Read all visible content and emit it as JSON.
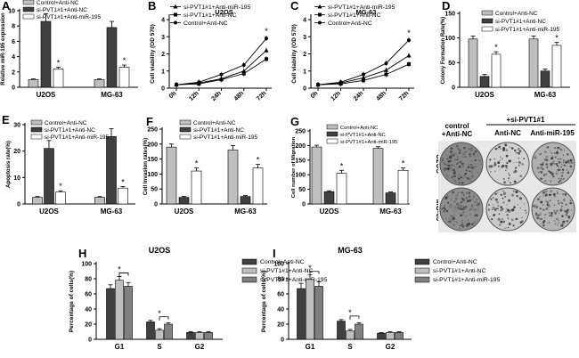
{
  "legend_colors": {
    "control": "#bfbfbf",
    "si": "#404040",
    "si_anti": "#ffffff",
    "mid": "#808080"
  },
  "chart_data": [
    {
      "id": "A",
      "type": "bar",
      "panel_label": "A",
      "ylabel": "Relative miR-195 expression",
      "categories": [
        "U2OS",
        "MG-63"
      ],
      "yticks": [
        0,
        2,
        4,
        6,
        8,
        10
      ],
      "ylim": [
        0,
        10
      ],
      "series": [
        {
          "name": "Control+Anti-NC",
          "values": [
            1.0,
            1.0
          ],
          "errors": [
            0.1,
            0.1
          ]
        },
        {
          "name": "si-PVT1#1+Anti-NC",
          "values": [
            8.6,
            7.8
          ],
          "errors": [
            1.0,
            0.8
          ]
        },
        {
          "name": "si-PVT1#1+Anti-miR-195",
          "values": [
            2.4,
            2.6
          ],
          "errors": [
            0.2,
            0.3
          ]
        }
      ],
      "annotations": [
        "*",
        "*"
      ]
    },
    {
      "id": "B",
      "type": "line",
      "panel_label": "B",
      "title": "U2OS",
      "ylabel": "Cell viability (OD 570)",
      "categories": [
        "0h",
        "12h",
        "24h",
        "48h",
        "72h"
      ],
      "yticks": [
        0,
        1,
        2,
        3,
        4
      ],
      "ylim": [
        0,
        4
      ],
      "series": [
        {
          "name": "si-PVT1#1+Anti-miR-195",
          "values": [
            0.2,
            0.3,
            0.55,
            1.0,
            2.2
          ]
        },
        {
          "name": "si-PVT1#1+Anti-NC",
          "values": [
            0.2,
            0.25,
            0.5,
            0.85,
            1.7
          ]
        },
        {
          "name": "Control+Anti-NC",
          "values": [
            0.2,
            0.35,
            0.8,
            1.35,
            2.9
          ]
        }
      ],
      "annotations": [
        "*"
      ]
    },
    {
      "id": "C",
      "type": "line",
      "panel_label": "C",
      "title": "MG-63",
      "ylabel": "Cell viability (OD 570)",
      "categories": [
        "0h",
        "12h",
        "24h",
        "48h",
        "72h"
      ],
      "yticks": [
        0,
        1,
        2,
        3,
        4
      ],
      "ylim": [
        0,
        4
      ],
      "series": [
        {
          "name": "si-PVT1#1+Anti-miR-195",
          "values": [
            0.2,
            0.3,
            0.6,
            1.05,
            1.9
          ]
        },
        {
          "name": "si-PVT1#1+Anti-NC",
          "values": [
            0.2,
            0.25,
            0.45,
            0.8,
            1.4
          ]
        },
        {
          "name": "Control+Anti-NC",
          "values": [
            0.2,
            0.35,
            0.8,
            1.45,
            2.8
          ]
        }
      ],
      "annotations": [
        "*"
      ]
    },
    {
      "id": "D",
      "type": "bar",
      "panel_label": "D",
      "ylabel": "Colony Formation Rate(%)",
      "categories": [
        "U2OS",
        "MG-63"
      ],
      "yticks": [
        0,
        50,
        100,
        150
      ],
      "ylim": [
        0,
        150
      ],
      "series": [
        {
          "name": "Control+Anti-NC",
          "values": [
            98,
            98
          ],
          "errors": [
            6,
            6
          ]
        },
        {
          "name": "si-PVT1#1+Anti-NC",
          "values": [
            22,
            33
          ],
          "errors": [
            4,
            4
          ]
        },
        {
          "name": "si-PVT1#1+Anti-miR-195",
          "values": [
            67,
            85
          ],
          "errors": [
            5,
            6
          ]
        }
      ],
      "annotations": [
        "*",
        "*"
      ]
    },
    {
      "id": "E",
      "type": "bar",
      "panel_label": "E",
      "ylabel": "Apoptosis rate(%)",
      "categories": [
        "U2OS",
        "MG-63"
      ],
      "yticks": [
        0,
        10,
        20,
        30
      ],
      "ylim": [
        0,
        30
      ],
      "series": [
        {
          "name": "Control+Anti-NC",
          "values": [
            2.5,
            2.5
          ],
          "errors": [
            0.3,
            0.3
          ]
        },
        {
          "name": "si-PVT1#1+Anti-NC",
          "values": [
            21,
            25.5
          ],
          "errors": [
            3,
            3
          ]
        },
        {
          "name": "si-PVT1#1+Anti-miR-195",
          "values": [
            4.5,
            6
          ],
          "errors": [
            0.5,
            0.6
          ]
        }
      ],
      "annotations": [
        "*",
        "*"
      ]
    },
    {
      "id": "F",
      "type": "bar",
      "panel_label": "F",
      "ylabel": "Cell Invasion rates(%)",
      "categories": [
        "U2OS",
        "MG-63"
      ],
      "yticks": [
        0,
        50,
        100,
        150,
        200,
        250
      ],
      "ylim": [
        0,
        250
      ],
      "series": [
        {
          "name": "Control+Anti-NC",
          "values": [
            190,
            180
          ],
          "errors": [
            10,
            15
          ]
        },
        {
          "name": "si-PVT1#1+Anti-NC",
          "values": [
            22,
            25
          ],
          "errors": [
            3,
            3
          ]
        },
        {
          "name": "si-PVT1#1+Anti-miR-195",
          "values": [
            110,
            120
          ],
          "errors": [
            10,
            12
          ]
        }
      ],
      "annotations": [
        "*",
        "*"
      ]
    },
    {
      "id": "G",
      "type": "bar",
      "panel_label": "G",
      "ylabel": "Cell number of Migration",
      "categories": [
        "U2OS",
        "MG-63"
      ],
      "yticks": [
        0,
        50,
        100,
        150,
        200,
        250
      ],
      "ylim": [
        0,
        250
      ],
      "series": [
        {
          "name": "Control+Anti-NC",
          "values": [
            195,
            190
          ],
          "errors": [
            6,
            6
          ]
        },
        {
          "name": "si-PVT1#1+Anti-NC",
          "values": [
            42,
            38
          ],
          "errors": [
            3,
            3
          ]
        },
        {
          "name": "si-PVT1#1+Anti-miR-195",
          "values": [
            105,
            115
          ],
          "errors": [
            10,
            8
          ]
        }
      ],
      "annotations": [
        "*",
        "*"
      ]
    },
    {
      "id": "H",
      "type": "bar",
      "panel_label": "H",
      "title": "U2OS",
      "ylabel": "Percentage of cells(%)",
      "categories": [
        "G1",
        "S",
        "G2"
      ],
      "yticks": [
        0,
        20,
        40,
        60,
        80,
        100
      ],
      "ylim": [
        0,
        100
      ],
      "series": [
        {
          "name": "Control+Anti-NC",
          "values": [
            67,
            23,
            9
          ],
          "errors": [
            5,
            2,
            1
          ]
        },
        {
          "name": "si-PVT1#1+Anti-NC",
          "values": [
            78,
            12,
            9
          ],
          "errors": [
            5,
            2,
            1
          ]
        },
        {
          "name": "si-PVT1#1+Anti-miR-195",
          "values": [
            70,
            20,
            9
          ],
          "errors": [
            5,
            2,
            1
          ]
        }
      ],
      "annotations": [
        "*",
        "*"
      ]
    },
    {
      "id": "I",
      "type": "bar",
      "panel_label": "I",
      "title": "MG-63",
      "ylabel": "Percentage of cells(%)",
      "categories": [
        "G1",
        "S",
        "G2"
      ],
      "yticks": [
        0,
        20,
        40,
        60,
        80,
        100
      ],
      "ylim": [
        0,
        100
      ],
      "series": [
        {
          "name": "Control+Anti-NC",
          "values": [
            67,
            24,
            8
          ],
          "errors": [
            7,
            2,
            1
          ]
        },
        {
          "name": "si-PVT1#1+Anti-NC",
          "values": [
            79,
            11,
            9
          ],
          "errors": [
            6,
            2,
            1
          ]
        },
        {
          "name": "si-PVT1#1+Anti-miR-195",
          "values": [
            70,
            20,
            9
          ],
          "errors": [
            6,
            2,
            1
          ]
        }
      ],
      "annotations": [
        "*",
        "*"
      ]
    }
  ],
  "colony_panel": {
    "header_control_line1": "control",
    "header_control_line2": "+Anti-NC",
    "header_group": "+si-PVT1#1",
    "header_col2": "Anti-NC",
    "header_col3": "Anti-miR-195",
    "row1": "U2OS",
    "row2": "MG-63"
  }
}
